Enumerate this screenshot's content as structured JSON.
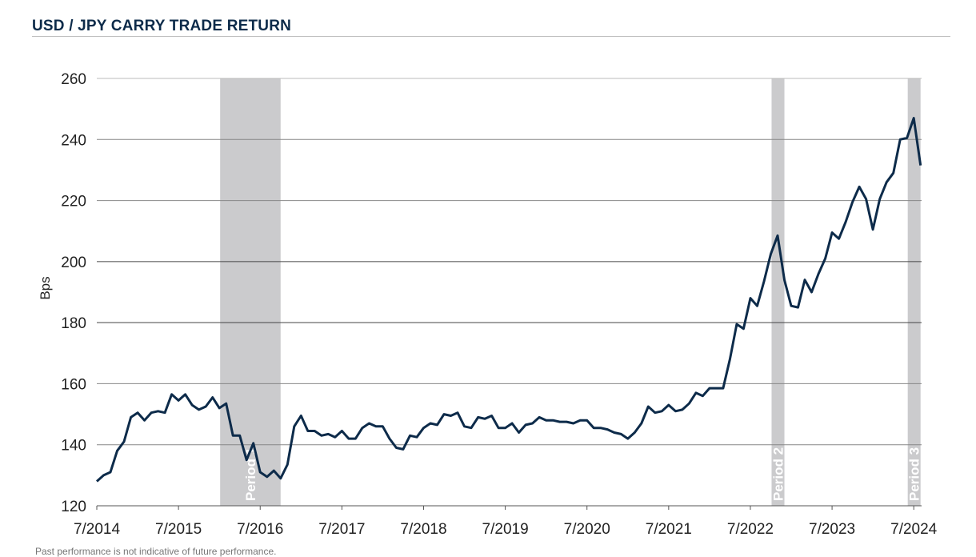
{
  "title": "USD / JPY CARRY TRADE RETURN",
  "footer": "Past performance is not indicative of future performance.",
  "chart_data": {
    "type": "line",
    "title": "USD / JPY CARRY TRADE RETURN",
    "xlabel": "",
    "ylabel": "Bps",
    "ylim": [
      120,
      260
    ],
    "yticks": [
      120,
      140,
      160,
      180,
      200,
      220,
      240,
      260
    ],
    "xticks": [
      "7/2014",
      "7/2015",
      "7/2016",
      "7/2017",
      "7/2018",
      "7/2019",
      "7/2020",
      "7/2021",
      "7/2022",
      "7/2023",
      "7/2024"
    ],
    "x_start": "2014-07",
    "x_frequency": "monthly",
    "grid": "horizontal",
    "line_color": "#0d2b4a",
    "shade_color": "#cbcbcd",
    "periods": [
      {
        "label": "Period 1",
        "start": "2016-01",
        "end": "2016-09"
      },
      {
        "label": "Period 2",
        "start": "2022-10",
        "end": "2022-11"
      },
      {
        "label": "Period 3",
        "start": "2024-06",
        "end": "2024-07"
      }
    ],
    "series": [
      {
        "values": [
          128,
          130,
          131,
          138,
          141,
          149,
          150.5,
          148,
          150.5,
          151,
          150.5,
          156.5,
          154.5,
          156.5,
          153,
          151.5,
          152.5,
          155.5,
          152,
          153.5,
          143,
          143,
          135,
          140.5,
          131,
          129.5,
          131.5,
          129,
          133.5,
          146,
          149.5,
          144.5,
          144.5,
          143,
          143.5,
          142.5,
          144.5,
          142,
          142,
          145.5,
          147,
          146,
          146,
          142,
          139,
          138.5,
          143,
          142.5,
          145.5,
          147,
          146.5,
          150,
          149.5,
          150.5,
          146,
          145.5,
          149,
          148.5,
          149.5,
          145.5,
          145.5,
          147,
          144,
          146.5,
          147,
          149,
          148,
          148,
          147.5,
          147.5,
          147,
          148,
          148,
          145.5,
          145.5,
          145,
          144,
          143.5,
          142,
          144,
          147,
          152.5,
          150.5,
          151,
          153,
          151,
          151.5,
          153.5,
          157,
          156,
          158.5,
          158.5,
          158.5,
          168,
          179.5,
          178,
          188,
          185.5,
          193.5,
          202.5,
          208.5,
          194,
          185.5,
          185,
          194,
          190,
          196,
          201,
          209.5,
          207.5,
          213,
          219.5,
          224.5,
          220.5,
          210.5,
          220.5,
          226,
          229,
          240,
          240.5,
          247,
          231.5
        ]
      }
    ]
  }
}
